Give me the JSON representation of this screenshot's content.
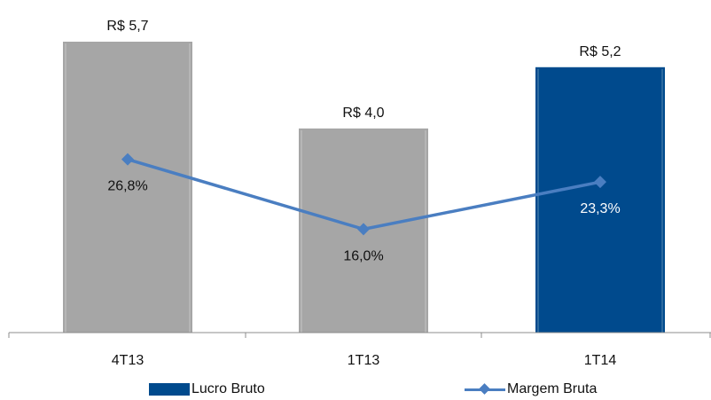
{
  "chart_data": {
    "type": "bar",
    "categories": [
      "4T13",
      "1T13",
      "1T14"
    ],
    "series": [
      {
        "name": "Lucro Bruto",
        "type": "bar",
        "values": [
          5.7,
          4.0,
          5.2
        ],
        "labels": [
          "R$ 5,7",
          "R$ 4,0",
          "R$ 5,2"
        ],
        "colors": [
          "#A6A6A6",
          "#A6A6A6",
          "#004A8D"
        ]
      },
      {
        "name": "Margem Bruta",
        "type": "line",
        "values": [
          26.8,
          16.0,
          23.3
        ],
        "labels": [
          "26,8%",
          "16,0%",
          "23,3%"
        ],
        "color": "#4A7EC1"
      }
    ],
    "ylim_bar": [
      0,
      5.7
    ],
    "ylim_line": [
      0,
      45
    ],
    "legend_position": "bottom"
  }
}
